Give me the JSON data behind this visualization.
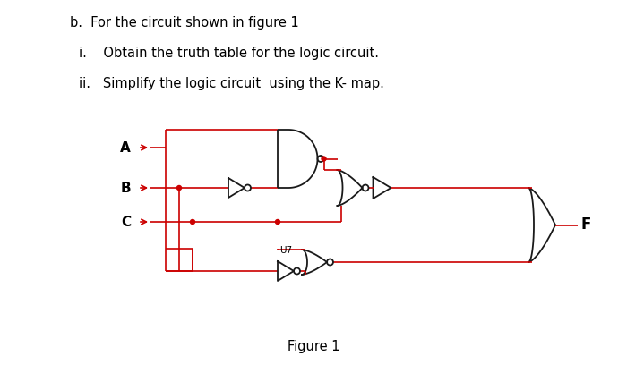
{
  "line0": "b.  For the circuit shown in figure 1",
  "line1": "i.    Obtain the truth table for the logic circuit.",
  "line2": "ii.   Simplify the logic circuit  using the K- map.",
  "figure_label": "Figure 1",
  "bg_color": "#ffffff",
  "wire_color": "#cc0000",
  "gate_color": "#1a1a1a",
  "text_color": "#000000"
}
